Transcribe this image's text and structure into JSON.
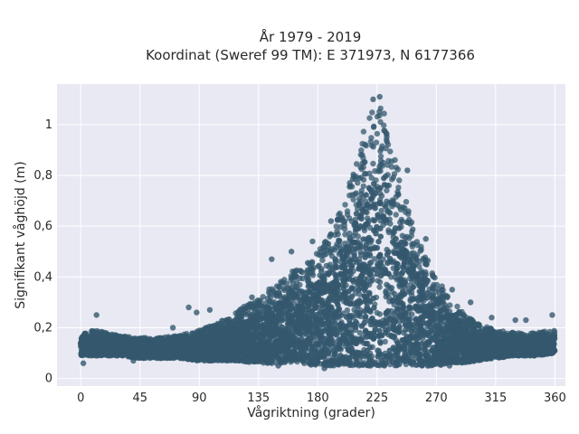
{
  "chart_data": {
    "type": "scatter",
    "title_line1": "År 1979 - 2019",
    "title_line2": "Koordinat (Sweref 99 TM): E 371973, N 6177366",
    "xlabel": "Vågriktning (grader)",
    "ylabel": "Signifikant våghöjd (m)",
    "xlim": [
      -18,
      368
    ],
    "ylim": [
      -0.03,
      1.16
    ],
    "x_ticks": [
      0,
      45,
      90,
      135,
      180,
      225,
      270,
      315,
      360
    ],
    "x_tick_labels": [
      "0",
      "45",
      "90",
      "135",
      "180",
      "225",
      "270",
      "315",
      "360"
    ],
    "y_ticks": [
      0,
      0.2,
      0.4,
      0.6,
      0.8,
      1.0
    ],
    "y_tick_labels": [
      "0",
      "0,2",
      "0,4",
      "0,6",
      "0,8",
      "1"
    ],
    "grid": true,
    "marker_color": "#34586e",
    "background_color": "#e8e9f2",
    "envelope": {
      "x": [
        0,
        10,
        20,
        30,
        45,
        60,
        75,
        90,
        105,
        120,
        135,
        150,
        165,
        180,
        190,
        200,
        210,
        215,
        220,
        225,
        230,
        235,
        240,
        250,
        260,
        270,
        280,
        290,
        300,
        315,
        330,
        345,
        360
      ],
      "upper": [
        0.18,
        0.19,
        0.18,
        0.17,
        0.16,
        0.16,
        0.17,
        0.19,
        0.22,
        0.27,
        0.32,
        0.38,
        0.44,
        0.5,
        0.57,
        0.7,
        0.88,
        0.98,
        1.05,
        1.08,
        1.06,
        0.97,
        0.84,
        0.65,
        0.5,
        0.4,
        0.32,
        0.26,
        0.22,
        0.19,
        0.18,
        0.18,
        0.19
      ],
      "lower": [
        0.09,
        0.09,
        0.09,
        0.09,
        0.08,
        0.08,
        0.08,
        0.07,
        0.07,
        0.07,
        0.06,
        0.06,
        0.06,
        0.05,
        0.05,
        0.05,
        0.05,
        0.05,
        0.05,
        0.05,
        0.05,
        0.05,
        0.05,
        0.05,
        0.05,
        0.05,
        0.06,
        0.06,
        0.07,
        0.08,
        0.09,
        0.09,
        0.1
      ]
    },
    "outliers": [
      {
        "x": 2,
        "y": 0.06
      },
      {
        "x": 12,
        "y": 0.25
      },
      {
        "x": 40,
        "y": 0.07
      },
      {
        "x": 48,
        "y": 0.16
      },
      {
        "x": 70,
        "y": 0.2
      },
      {
        "x": 82,
        "y": 0.28
      },
      {
        "x": 88,
        "y": 0.26
      },
      {
        "x": 98,
        "y": 0.27
      },
      {
        "x": 130,
        "y": 0.32
      },
      {
        "x": 145,
        "y": 0.47
      },
      {
        "x": 160,
        "y": 0.5
      },
      {
        "x": 176,
        "y": 0.54
      },
      {
        "x": 190,
        "y": 0.62
      },
      {
        "x": 222,
        "y": 1.1
      },
      {
        "x": 227,
        "y": 1.11
      },
      {
        "x": 248,
        "y": 0.82
      },
      {
        "x": 262,
        "y": 0.55
      },
      {
        "x": 282,
        "y": 0.35
      },
      {
        "x": 296,
        "y": 0.3
      },
      {
        "x": 312,
        "y": 0.24
      },
      {
        "x": 330,
        "y": 0.23
      },
      {
        "x": 338,
        "y": 0.23
      },
      {
        "x": 358,
        "y": 0.25
      },
      {
        "x": 280,
        "y": 0.05
      },
      {
        "x": 185,
        "y": 0.04
      },
      {
        "x": 150,
        "y": 0.05
      }
    ]
  }
}
